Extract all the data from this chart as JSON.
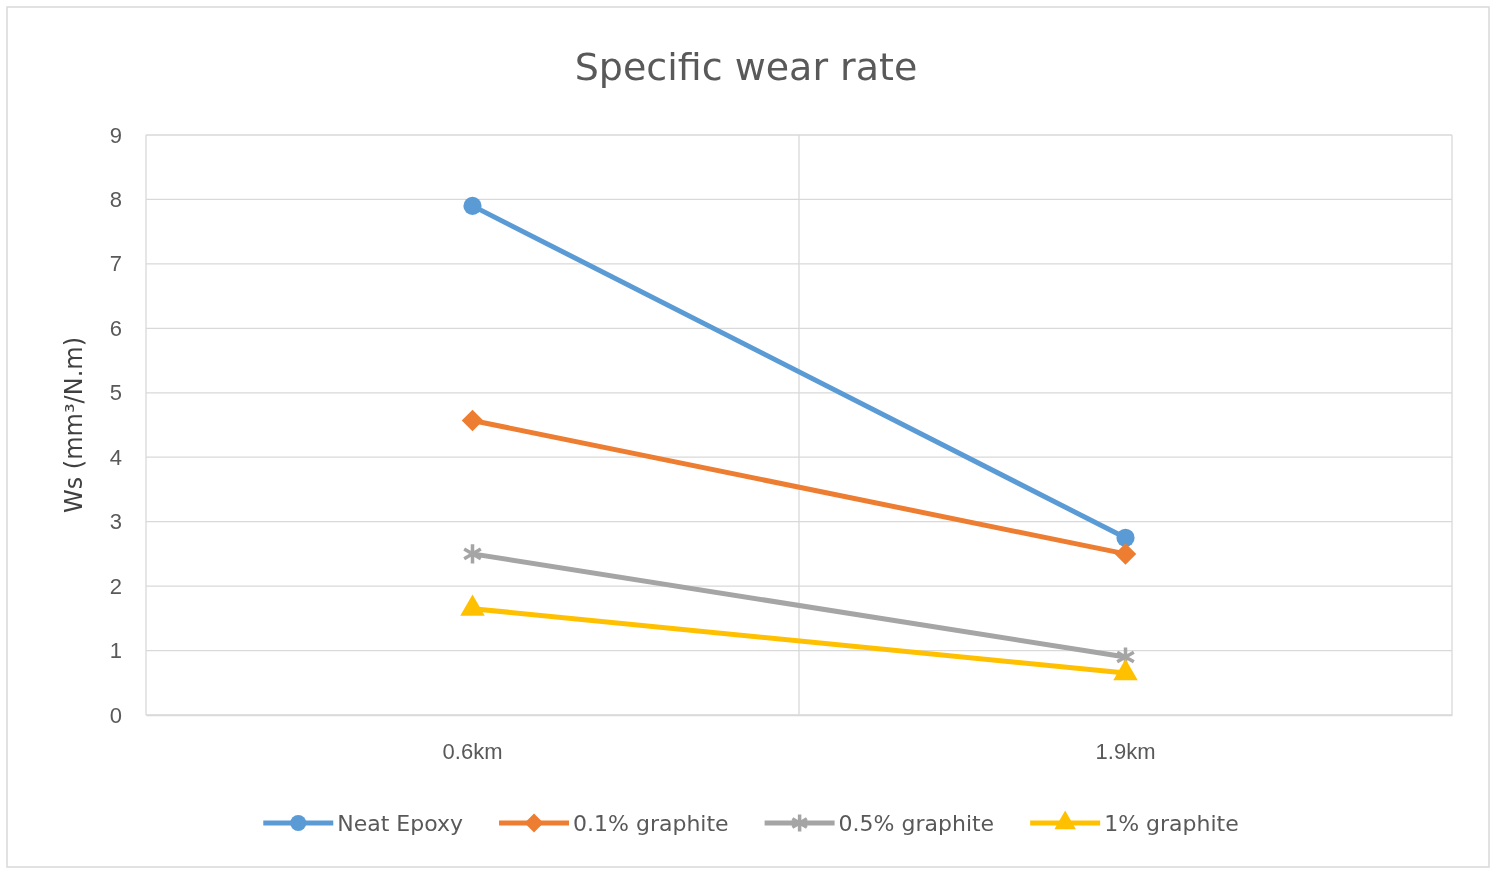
{
  "chart_data": {
    "type": "line",
    "title": "Specific wear rate",
    "ylabel": "Ws (mm³/N.m)",
    "categories": [
      "0.6km",
      "1.9km"
    ],
    "ylim": [
      0,
      9
    ],
    "yticks": [
      0,
      1,
      2,
      3,
      4,
      5,
      6,
      7,
      8,
      9
    ],
    "grid": true,
    "legend": "bottom",
    "line_style": "solid",
    "series": [
      {
        "name": "Neat Epoxy",
        "color": "#5b9bd5",
        "marker": "circle",
        "values": [
          7.9,
          2.75
        ]
      },
      {
        "name": "0.1% graphite",
        "color": "#ed7d31",
        "marker": "diamond",
        "values": [
          4.57,
          2.5
        ]
      },
      {
        "name": "0.5% graphite",
        "color": "#a5a5a5",
        "marker": "cross",
        "values": [
          2.5,
          0.9
        ]
      },
      {
        "name": "1% graphite",
        "color": "#ffc000",
        "marker": "triangle",
        "values": [
          1.65,
          0.65
        ]
      }
    ]
  }
}
